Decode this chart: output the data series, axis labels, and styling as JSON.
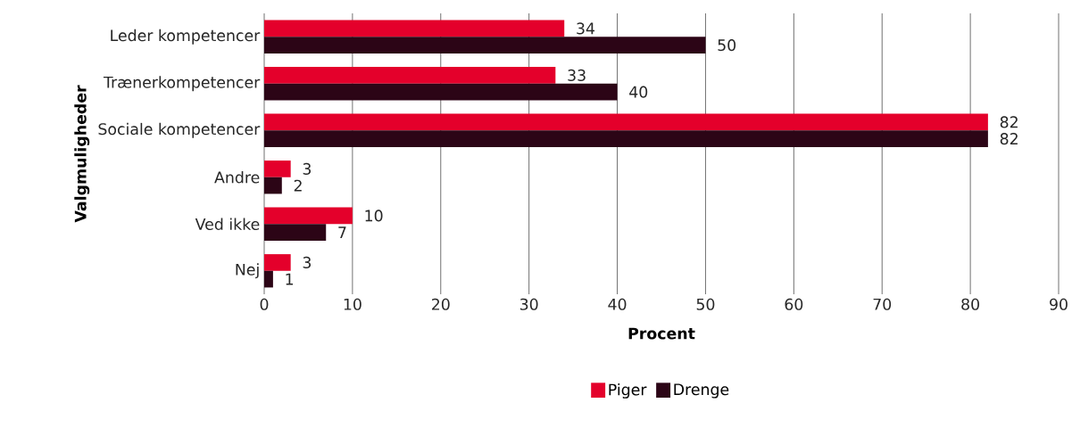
{
  "chart_data": {
    "type": "bar",
    "orientation": "horizontal",
    "xlabel": "Procent",
    "ylabel": "Valgmuligheder",
    "categories": [
      "Leder kompetencer",
      "Trænerkompetencer",
      "Sociale kompetencer",
      "Andre",
      "Ved ikke",
      "Nej"
    ],
    "series": [
      {
        "name": "Piger",
        "color": "#e4002b",
        "values": [
          34,
          33,
          82,
          3,
          10,
          3
        ]
      },
      {
        "name": "Drenge",
        "color": "#2c0516",
        "values": [
          50,
          40,
          82,
          2,
          7,
          1
        ]
      }
    ],
    "xlim": [
      0,
      90
    ],
    "xticks": [
      0,
      10,
      20,
      30,
      40,
      50,
      60,
      70,
      80,
      90
    ],
    "grid": "x",
    "legend": "bottom",
    "data_labels": true
  }
}
